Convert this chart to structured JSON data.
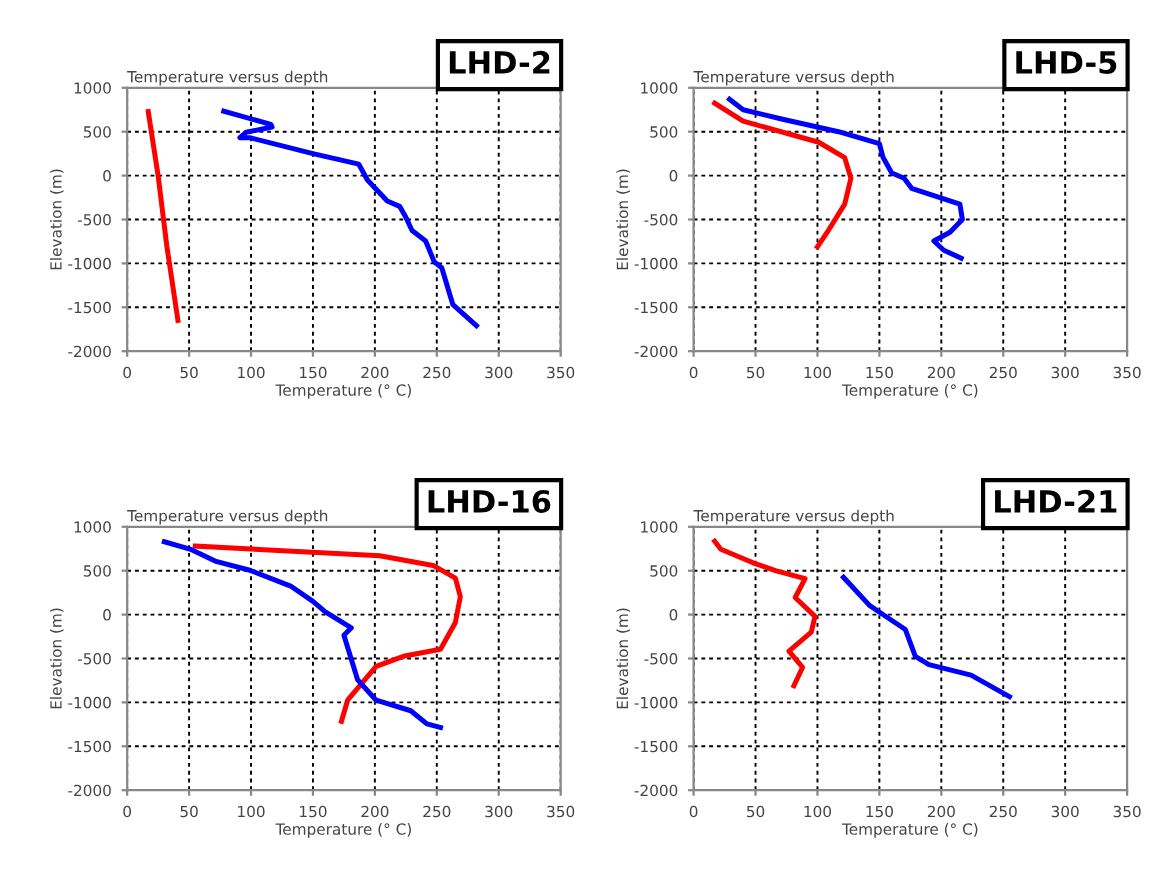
{
  "chart_data": [
    {
      "type": "line",
      "title": "Temperature versus depth",
      "xlabel": "Temperature (° C)",
      "ylabel": "Elevation (m)",
      "annotations": [
        "LHD-2"
      ],
      "xlim": [
        0,
        350
      ],
      "ylim": [
        -2000,
        1000
      ],
      "xticks": [
        0,
        50,
        100,
        150,
        200,
        250,
        300,
        350
      ],
      "yticks": [
        -2000,
        -1500,
        -1000,
        -500,
        0,
        500,
        1000
      ],
      "grid": true,
      "series": [
        {
          "color": "#ff0000",
          "x": [
            17,
            25,
            32,
            41
          ],
          "values": [
            730,
            0,
            -800,
            -1650
          ]
        },
        {
          "color": "#0000ff",
          "x": [
            78,
            116,
            117,
            96,
            91,
            99,
            150,
            187,
            194,
            210,
            220,
            225,
            230,
            241,
            248,
            254,
            263,
            282
          ],
          "values": [
            734,
            583,
            553,
            493,
            432,
            432,
            251,
            130,
            -50,
            -290,
            -350,
            -475,
            -625,
            -745,
            -985,
            -1050,
            -1470,
            -1710
          ]
        }
      ]
    },
    {
      "type": "line",
      "title": "Temperature versus depth",
      "xlabel": "Temperature (° C)",
      "ylabel": "Elevation (m)",
      "annotations": [
        "LHD-5"
      ],
      "xlim": [
        0,
        350
      ],
      "ylim": [
        -2000,
        1000
      ],
      "xticks": [
        0,
        50,
        100,
        150,
        200,
        250,
        300,
        350
      ],
      "yticks": [
        -2000,
        -1500,
        -1000,
        -500,
        0,
        500,
        1000
      ],
      "grid": true,
      "series": [
        {
          "color": "#ff0000",
          "x": [
            17,
            40,
            101,
            122,
            127,
            122,
            109,
            100
          ],
          "values": [
            825,
            620,
            380,
            205,
            -30,
            -325,
            -620,
            -810
          ]
        },
        {
          "color": "#0000ff",
          "x": [
            29,
            40,
            71,
            117,
            150,
            153,
            160,
            170,
            176,
            215,
            217,
            207,
            194,
            202,
            216
          ],
          "values": [
            870,
            750,
            645,
            500,
            365,
            205,
            30,
            -30,
            -145,
            -325,
            -500,
            -645,
            -745,
            -850,
            -940
          ]
        }
      ]
    },
    {
      "type": "line",
      "title": "Temperature versus depth",
      "xlabel": "Temperature (° C)",
      "ylabel": "Elevation (m)",
      "annotations": [
        "LHD-16"
      ],
      "xlim": [
        0,
        350
      ],
      "ylim": [
        -2000,
        1000
      ],
      "xticks": [
        0,
        50,
        100,
        150,
        200,
        250,
        300,
        350
      ],
      "yticks": [
        -2000,
        -1500,
        -1000,
        -500,
        0,
        500,
        1000
      ],
      "grid": true,
      "series": [
        {
          "color": "#ff0000",
          "x": [
            55,
            204,
            247,
            265,
            269,
            265,
            253,
            223,
            201,
            178,
            173
          ],
          "values": [
            780,
            670,
            560,
            415,
            205,
            -90,
            -395,
            -475,
            -590,
            -975,
            -1215
          ]
        },
        {
          "color": "#0000ff",
          "x": [
            30,
            52,
            71,
            99,
            132,
            150,
            160,
            181,
            175,
            186,
            201,
            229,
            242,
            253
          ],
          "values": [
            830,
            740,
            610,
            505,
            325,
            150,
            30,
            -150,
            -235,
            -740,
            -975,
            -1095,
            -1245,
            -1285
          ]
        }
      ]
    },
    {
      "type": "line",
      "title": "Temperature versus depth",
      "xlabel": "Temperature (° C)",
      "ylabel": "Elevation (m)",
      "annotations": [
        "LHD-21"
      ],
      "xlim": [
        0,
        350
      ],
      "ylim": [
        -2000,
        1000
      ],
      "xticks": [
        0,
        50,
        100,
        150,
        200,
        250,
        300,
        350
      ],
      "yticks": [
        -2000,
        -1500,
        -1000,
        -500,
        0,
        500,
        1000
      ],
      "grid": true,
      "series": [
        {
          "color": "#ff0000",
          "x": [
            17,
            22,
            48,
            66,
            90,
            82,
            98,
            95,
            77,
            88,
            81
          ],
          "values": [
            835,
            745,
            590,
            500,
            410,
            195,
            -20,
            -200,
            -415,
            -600,
            -810
          ]
        },
        {
          "color": "#0000ff",
          "x": [
            121,
            142,
            152,
            171,
            179,
            190,
            224,
            255
          ],
          "values": [
            425,
            105,
            10,
            -170,
            -475,
            -570,
            -690,
            -935
          ]
        }
      ]
    }
  ]
}
